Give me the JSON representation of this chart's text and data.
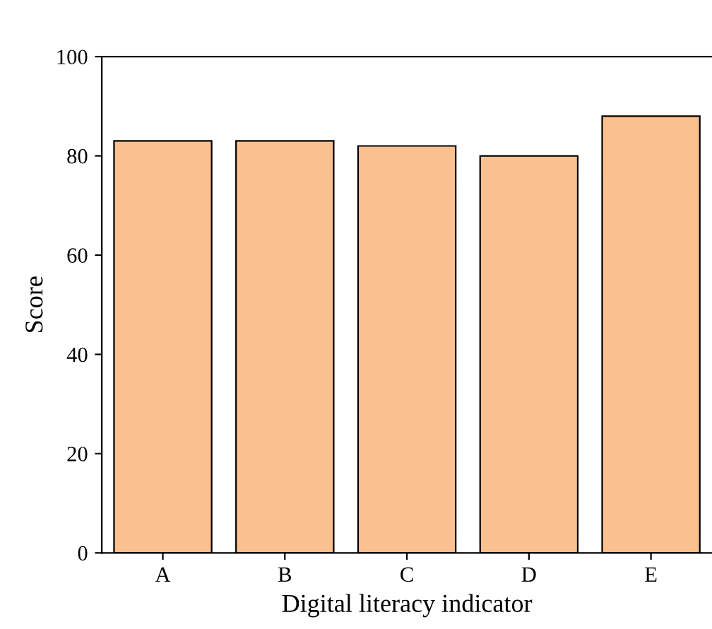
{
  "chart_data": {
    "type": "bar",
    "xlabel": "Digital literacy indicator",
    "ylabel": "Score",
    "categories": [
      "A",
      "B",
      "C",
      "D",
      "E"
    ],
    "values": [
      83,
      83,
      82,
      80,
      88
    ],
    "color": "#fbc08f",
    "ylim": [
      0,
      100
    ],
    "yticks": [
      0,
      20,
      40,
      60,
      80,
      100
    ],
    "grid": false
  }
}
